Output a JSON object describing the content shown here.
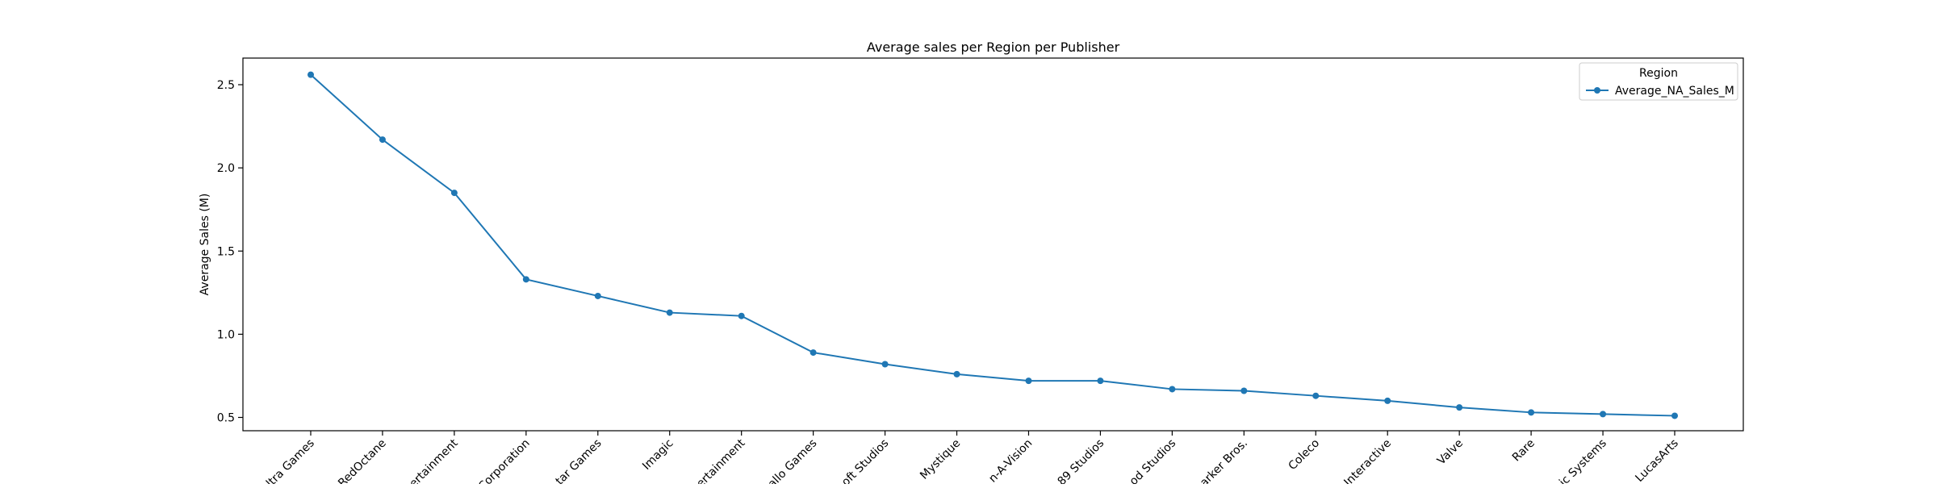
{
  "chart_data": {
    "type": "line",
    "title": "Average sales per Region per Publisher",
    "xlabel": "",
    "ylabel": "Average Sales (M)",
    "ylim": [
      0.42,
      2.66
    ],
    "yticks": [
      "0.5",
      "1.0",
      "1.5",
      "2.0",
      "2.5"
    ],
    "grid": false,
    "legend": {
      "title": "Region",
      "position": "top-right"
    },
    "categories": [
      "ltra Games",
      "RedOctane",
      "ertainment",
      "Corporation",
      "tar Games",
      "Imagic",
      "ertainment",
      "allo Games",
      "oft Studios",
      "Mystique",
      "n-A-Vision",
      "89 Studios",
      "od Studios",
      "arker Bros.",
      "Coleco",
      "Interactive",
      "Valve",
      "Rare",
      "ic Systems",
      "LucasArts"
    ],
    "series": [
      {
        "name": "Average_NA_Sales_M",
        "color": "#1f77b4",
        "values": [
          2.56,
          2.17,
          1.85,
          1.33,
          1.23,
          1.13,
          1.11,
          0.89,
          0.82,
          0.76,
          0.72,
          0.72,
          0.67,
          0.66,
          0.63,
          0.6,
          0.56,
          0.53,
          0.52,
          0.51
        ]
      }
    ]
  }
}
